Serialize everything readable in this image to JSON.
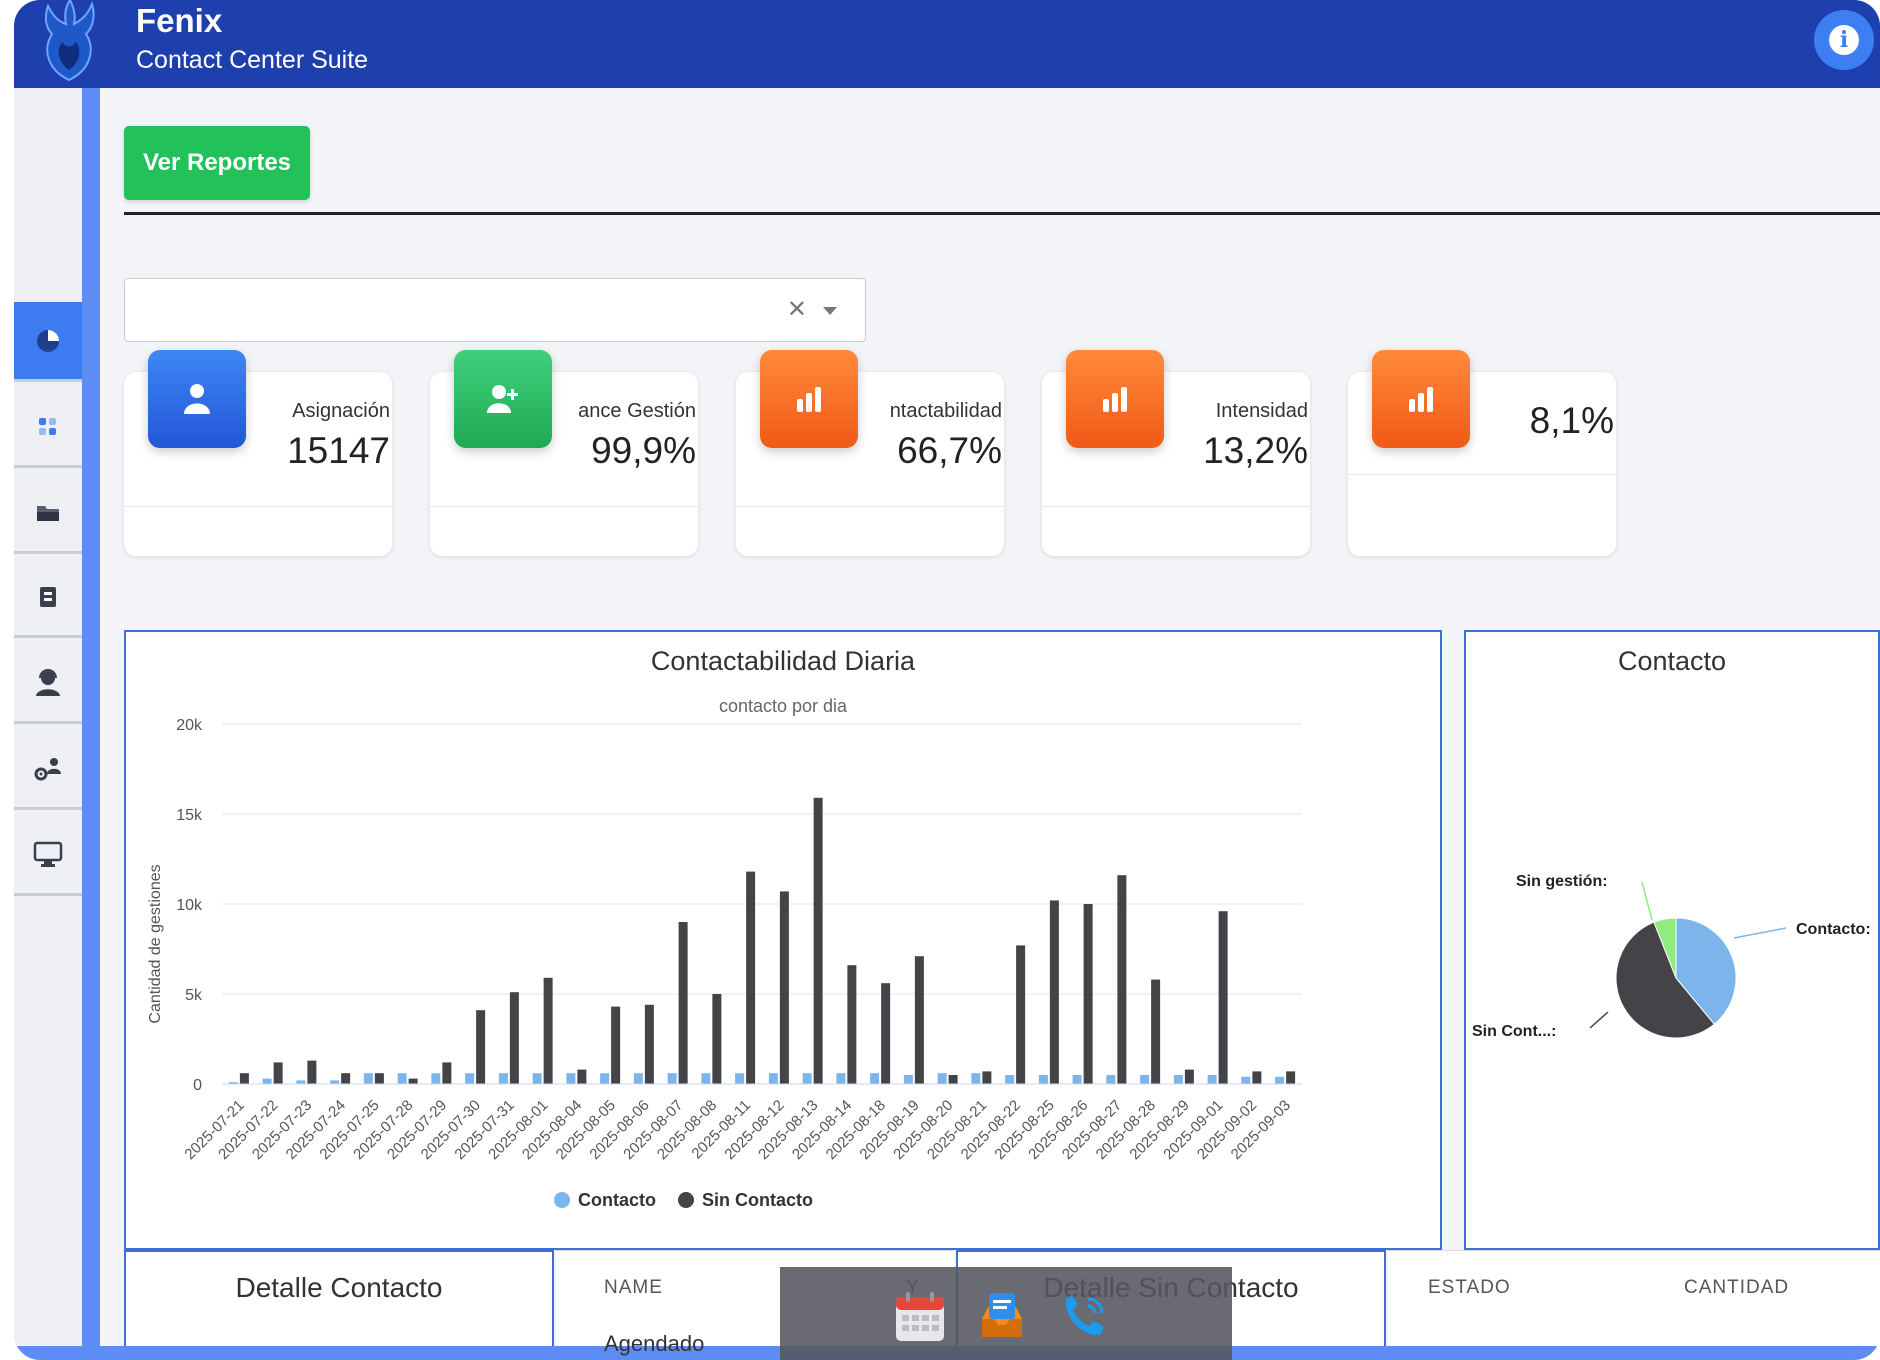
{
  "header": {
    "app_title": "Fenix",
    "app_subtitle": "Contact Center Suite",
    "info_icon": "info-icon"
  },
  "sidebar": {
    "items": [
      {
        "icon": "pie-chart-icon",
        "active": true
      },
      {
        "icon": "grid-icon",
        "active": false
      },
      {
        "icon": "folder-icon",
        "active": false
      },
      {
        "icon": "document-icon",
        "active": false
      },
      {
        "icon": "agent-icon",
        "active": false
      },
      {
        "icon": "users-settings-icon",
        "active": false
      },
      {
        "icon": "monitor-icon",
        "active": false
      }
    ]
  },
  "toolbar": {
    "reports_label": "Ver Reportes"
  },
  "filter": {
    "value": "",
    "clear_symbol": "✕"
  },
  "kpis": [
    {
      "label": "Asignación",
      "value": "15147",
      "icon": "user-icon"
    },
    {
      "label": "ance Gestión",
      "value": "99,9%",
      "icon": "user-plus-icon"
    },
    {
      "label": "ntactabilidad",
      "value": "66,7%",
      "icon": "bar-chart-icon"
    },
    {
      "label": "Intensidad",
      "value": "13,2%",
      "icon": "bar-chart-icon"
    },
    {
      "label": "",
      "value": "8,1%",
      "icon": "bar-chart-icon"
    }
  ],
  "colors": {
    "header": "#1e3fae",
    "accent": "#3c7cf0",
    "green": "#22c15a",
    "orange": "#f26a1f",
    "contacto": "#7cb5ec",
    "sin_contacto": "#434348",
    "sin_gestion": "#90ed7d"
  },
  "chart_data": [
    {
      "type": "bar",
      "title": "Contactabilidad Diaria",
      "subtitle": "contacto por dia",
      "ylabel": "Cantidad de gestiones",
      "ylim": [
        0,
        20000
      ],
      "yticks": [
        "0",
        "5k",
        "10k",
        "15k",
        "20k"
      ],
      "legend_position": "bottom",
      "grid": true,
      "categories": [
        "2025-07-21",
        "2025-07-22",
        "2025-07-23",
        "2025-07-24",
        "2025-07-25",
        "2025-07-28",
        "2025-07-29",
        "2025-07-30",
        "2025-07-31",
        "2025-08-01",
        "2025-08-04",
        "2025-08-05",
        "2025-08-06",
        "2025-08-07",
        "2025-08-08",
        "2025-08-11",
        "2025-08-12",
        "2025-08-13",
        "2025-08-14",
        "2025-08-18",
        "2025-08-19",
        "2025-08-20",
        "2025-08-21",
        "2025-08-22",
        "2025-08-25",
        "2025-08-26",
        "2025-08-27",
        "2025-08-28",
        "2025-08-29",
        "2025-09-01",
        "2025-09-02",
        "2025-09-03"
      ],
      "series": [
        {
          "name": "Contacto",
          "color": "#7cb5ec",
          "values": [
            100,
            300,
            200,
            200,
            600,
            600,
            600,
            600,
            600,
            600,
            600,
            600,
            600,
            600,
            600,
            600,
            600,
            600,
            600,
            600,
            500,
            600,
            600,
            500,
            500,
            500,
            500,
            500,
            500,
            500,
            400,
            400
          ]
        },
        {
          "name": "Sin Contacto",
          "color": "#434348",
          "values": [
            600,
            1200,
            1300,
            600,
            600,
            300,
            1200,
            4100,
            5100,
            5900,
            800,
            4300,
            4400,
            9000,
            5000,
            11800,
            10700,
            15900,
            6600,
            5600,
            7100,
            500,
            700,
            7700,
            10200,
            10000,
            11600,
            5800,
            800,
            9600,
            700,
            700
          ]
        }
      ]
    },
    {
      "type": "pie",
      "title": "Contacto",
      "slices": [
        {
          "name": "Contacto:",
          "value": 39,
          "color": "#7cb5ec"
        },
        {
          "name": "Sin Cont...:",
          "value": 55,
          "color": "#434348"
        },
        {
          "name": "Sin gestión:",
          "value": 6,
          "color": "#90ed7d"
        }
      ]
    }
  ],
  "detalle_contacto": {
    "title": "Detalle Contacto",
    "col_name": "NAME",
    "col_y": "Y",
    "row_partial": "Agendado"
  },
  "detalle_sin_contacto": {
    "title": "Detalle Sin Contacto",
    "col_estado": "ESTADO",
    "col_cantidad": "CANTIDAD"
  },
  "taskbar": {
    "apps": [
      "calendar-icon",
      "inbox-icon",
      "phone-icon"
    ]
  }
}
